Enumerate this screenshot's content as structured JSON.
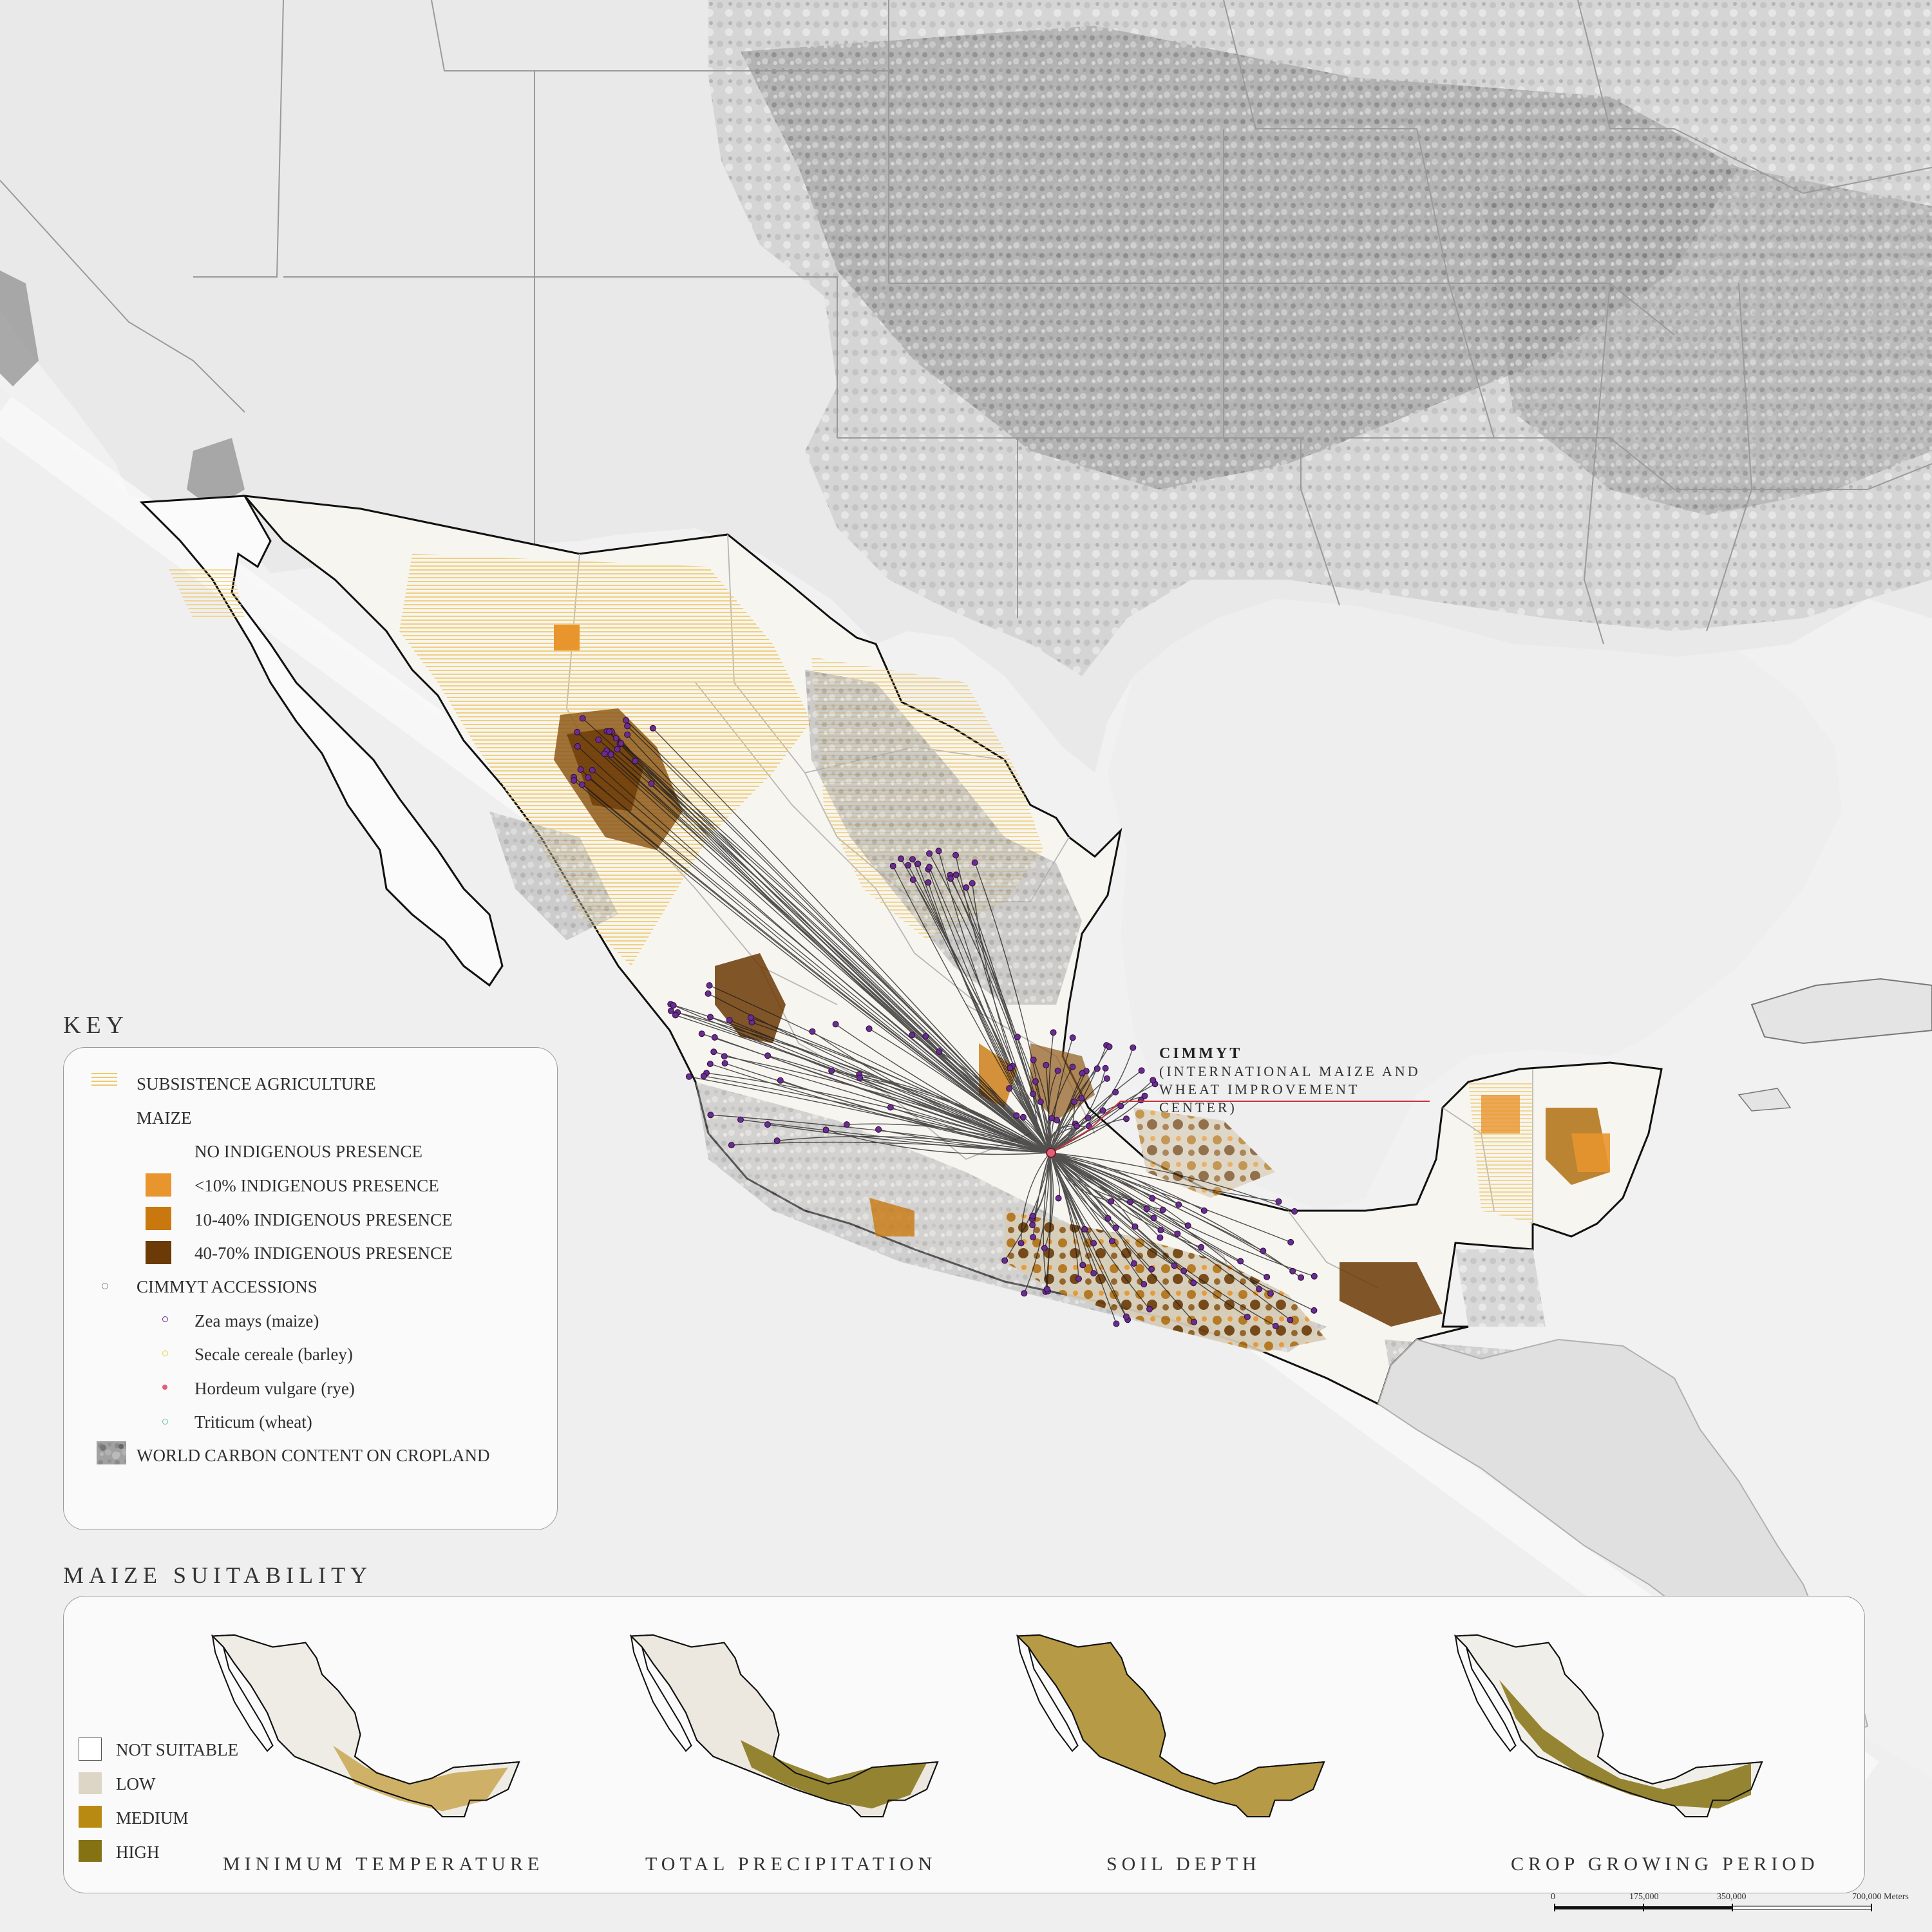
{
  "callout": {
    "title": "CIMMYT",
    "subtitle": "(INTERNATIONAL MAIZE AND WHEAT IMPROVEMENT CENTER)"
  },
  "key": {
    "title": "KEY",
    "items": {
      "subsistence": "SUBSISTENCE AGRICULTURE",
      "maize": "MAIZE",
      "no_indigenous": "NO INDIGENOUS PRESENCE",
      "lt10": "<10% INDIGENOUS PRESENCE",
      "p10_40": "10-40% INDIGENOUS PRESENCE",
      "p40_70": "40-70% INDIGENOUS PRESENCE",
      "accessions": "CIMMYT ACCESSIONS",
      "zea": "Zea mays (maize)",
      "secale": "Secale cereale (barley)",
      "hordeum": "Hordeum vulgare (rye)",
      "triticum": "Triticum (wheat)",
      "carbon": "WORLD CARBON CONTENT ON CROPLAND"
    },
    "colors": {
      "subsistence": "#f3d98c",
      "lt10": "#e8952e",
      "p10_40": "#c9780f",
      "p40_70": "#6b3a06",
      "zea": "#6a2c8f",
      "secale": "#e4d24a",
      "hordeum": "#e0607a",
      "triticum": "#5ec9a0",
      "carbon": "#8c8c8c"
    }
  },
  "suitability": {
    "title": "MAIZE SUITABILITY",
    "legend": {
      "not_suitable": "NOT SUITABLE",
      "low": "LOW",
      "medium": "MEDIUM",
      "high": "HIGH"
    },
    "colors": {
      "not_suitable": "#ffffff",
      "low": "#ddd6c6",
      "medium": "#b98a12",
      "high": "#857212"
    },
    "maps": [
      "MINIMUM TEMPERATURE",
      "TOTAL PRECIPITATION",
      "SOIL DEPTH",
      "CROP GROWING PERIOD"
    ]
  },
  "scale": {
    "ticks": [
      "0",
      "175,000",
      "350,000",
      "700,000 Meters"
    ]
  }
}
